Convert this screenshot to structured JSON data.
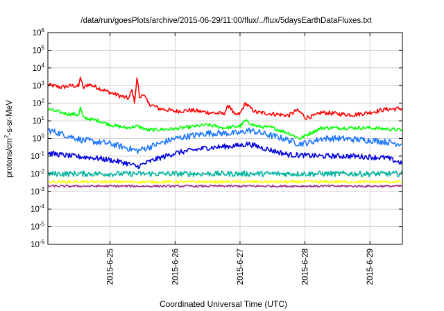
{
  "chart_data": {
    "type": "line",
    "title": "/data/run/goesPlots/archive/2015-06-29/11:00/flux/../flux/5daysEarthDataFluxes.txt",
    "xlabel": "Coordinated Universal Time (UTC)",
    "ylabel": {
      "pre": "protons/cm",
      "sup": "2",
      "post": "-s-sr-MeV"
    },
    "ylog": true,
    "ylim": [
      1e-06,
      1000000.0
    ],
    "xlim": [
      "2015-06-24T01:00",
      "2015-06-29T12:00"
    ],
    "grid": true,
    "y_ticks": [
      {
        "value": 1000000.0,
        "base": "10",
        "exp": "6"
      },
      {
        "value": 100000.0,
        "base": "10",
        "exp": "5"
      },
      {
        "value": 10000.0,
        "base": "10",
        "exp": "4"
      },
      {
        "value": 1000.0,
        "base": "10",
        "exp": "3"
      },
      {
        "value": 100.0,
        "base": "10",
        "exp": "2"
      },
      {
        "value": 10.0,
        "base": "10",
        "exp": "1"
      },
      {
        "value": 1.0,
        "base": "10",
        "exp": "0"
      },
      {
        "value": 0.1,
        "base": "10",
        "exp": "-1"
      },
      {
        "value": 0.01,
        "base": "10",
        "exp": "-2"
      },
      {
        "value": 0.001,
        "base": "10",
        "exp": "-3"
      },
      {
        "value": 0.0001,
        "base": "10",
        "exp": "-4"
      },
      {
        "value": 1e-05,
        "base": "10",
        "exp": "-5"
      },
      {
        "value": 1e-06,
        "base": "10",
        "exp": "-6"
      }
    ],
    "x_ticks": [
      {
        "value": "2015-06-25T00:00",
        "label": "2015-6-25"
      },
      {
        "value": "2015-06-26T00:00",
        "label": "2015-6-26"
      },
      {
        "value": "2015-06-27T00:00",
        "label": "2015-6-27"
      },
      {
        "value": "2015-06-28T00:00",
        "label": "2015-6-28"
      },
      {
        "value": "2015-06-29T00:00",
        "label": "2015-6-29"
      }
    ],
    "series": [
      {
        "color": "#ff0000",
        "noise": 0.12,
        "points": [
          [
            "2015-06-24T01:00",
            1100
          ],
          [
            "2015-06-24T06:00",
            800
          ],
          [
            "2015-06-24T10:00",
            1000
          ],
          [
            "2015-06-24T14:00",
            700
          ],
          [
            "2015-06-24T12:30",
            900
          ],
          [
            "2015-06-24T13:00",
            3500
          ],
          [
            "2015-06-24T16:00",
            1200
          ],
          [
            "2015-06-24T20:00",
            700
          ],
          [
            "2015-06-25T00:00",
            400
          ],
          [
            "2015-06-25T04:00",
            250
          ],
          [
            "2015-06-25T07:00",
            180
          ],
          [
            "2015-06-25T08:00",
            600
          ],
          [
            "2015-06-25T09:00",
            120
          ],
          [
            "2015-06-25T10:00",
            3000
          ],
          [
            "2015-06-25T11:00",
            150
          ],
          [
            "2015-06-25T12:00",
            400
          ],
          [
            "2015-06-25T14:00",
            100
          ],
          [
            "2015-06-25T18:00",
            50
          ],
          [
            "2015-06-26T00:00",
            35
          ],
          [
            "2015-06-26T06:00",
            40
          ],
          [
            "2015-06-26T12:00",
            30
          ],
          [
            "2015-06-26T18:00",
            25
          ],
          [
            "2015-06-26T20:00",
            80
          ],
          [
            "2015-06-26T22:00",
            20
          ],
          [
            "2015-06-27T00:00",
            25
          ],
          [
            "2015-06-27T02:00",
            100
          ],
          [
            "2015-06-27T04:00",
            50
          ],
          [
            "2015-06-27T06:00",
            30
          ],
          [
            "2015-06-27T12:00",
            25
          ],
          [
            "2015-06-27T18:00",
            20
          ],
          [
            "2015-06-27T21:00",
            40
          ],
          [
            "2015-06-27T23:00",
            25
          ],
          [
            "2015-06-28T00:00",
            15
          ],
          [
            "2015-06-28T04:00",
            20
          ],
          [
            "2015-06-28T06:00",
            30
          ],
          [
            "2015-06-28T12:00",
            25
          ],
          [
            "2015-06-28T18:00",
            22
          ],
          [
            "2015-06-29T00:00",
            30
          ],
          [
            "2015-06-29T06:00",
            45
          ],
          [
            "2015-06-29T12:00",
            50
          ]
        ]
      },
      {
        "color": "#00ff00",
        "noise": 0.1,
        "points": [
          [
            "2015-06-24T01:00",
            45
          ],
          [
            "2015-06-24T08:00",
            25
          ],
          [
            "2015-06-24T12:30",
            22
          ],
          [
            "2015-06-24T13:00",
            60
          ],
          [
            "2015-06-24T14:00",
            15
          ],
          [
            "2015-06-24T20:00",
            10
          ],
          [
            "2015-06-25T00:00",
            6
          ],
          [
            "2015-06-25T06:00",
            4
          ],
          [
            "2015-06-25T10:00",
            5
          ],
          [
            "2015-06-25T14:00",
            3
          ],
          [
            "2015-06-26T00:00",
            3.5
          ],
          [
            "2015-06-26T12:00",
            6
          ],
          [
            "2015-06-26T18:00",
            4
          ],
          [
            "2015-06-27T00:00",
            5
          ],
          [
            "2015-06-27T02:00",
            10
          ],
          [
            "2015-06-27T06:00",
            5
          ],
          [
            "2015-06-27T12:00",
            4
          ],
          [
            "2015-06-27T18:00",
            2
          ],
          [
            "2015-06-27T22:00",
            1
          ],
          [
            "2015-06-28T02:00",
            2
          ],
          [
            "2015-06-28T06:00",
            4
          ],
          [
            "2015-06-28T12:00",
            4
          ],
          [
            "2015-06-29T00:00",
            4
          ],
          [
            "2015-06-29T12:00",
            3
          ]
        ]
      },
      {
        "color": "#1e78ff",
        "noise": 0.18,
        "points": [
          [
            "2015-06-24T01:00",
            3
          ],
          [
            "2015-06-24T08:00",
            1.5
          ],
          [
            "2015-06-24T14:00",
            0.8
          ],
          [
            "2015-06-25T00:00",
            0.5
          ],
          [
            "2015-06-25T06:00",
            0.3
          ],
          [
            "2015-06-25T10:00",
            0.2
          ],
          [
            "2015-06-25T18:00",
            0.5
          ],
          [
            "2015-06-26T00:00",
            1
          ],
          [
            "2015-06-26T12:00",
            2
          ],
          [
            "2015-06-27T00:00",
            2
          ],
          [
            "2015-06-27T03:00",
            3
          ],
          [
            "2015-06-27T08:00",
            2
          ],
          [
            "2015-06-27T16:00",
            1
          ],
          [
            "2015-06-27T22:00",
            0.5
          ],
          [
            "2015-06-28T02:00",
            0.6
          ],
          [
            "2015-06-28T06:00",
            1
          ],
          [
            "2015-06-28T12:00",
            1
          ],
          [
            "2015-06-29T00:00",
            0.8
          ],
          [
            "2015-06-29T12:00",
            0.5
          ]
        ]
      },
      {
        "color": "#0000dd",
        "noise": 0.15,
        "points": [
          [
            "2015-06-24T01:00",
            0.15
          ],
          [
            "2015-06-24T10:00",
            0.1
          ],
          [
            "2015-06-24T18:00",
            0.08
          ],
          [
            "2015-06-25T00:00",
            0.06
          ],
          [
            "2015-06-25T06:00",
            0.04
          ],
          [
            "2015-06-25T10:00",
            0.025
          ],
          [
            "2015-06-25T16:00",
            0.06
          ],
          [
            "2015-06-26T00:00",
            0.15
          ],
          [
            "2015-06-26T12:00",
            0.3
          ],
          [
            "2015-06-27T00:00",
            0.4
          ],
          [
            "2015-06-27T03:00",
            0.5
          ],
          [
            "2015-06-27T10:00",
            0.25
          ],
          [
            "2015-06-27T18:00",
            0.12
          ],
          [
            "2015-06-28T06:00",
            0.1
          ],
          [
            "2015-06-28T18:00",
            0.1
          ],
          [
            "2015-06-29T06:00",
            0.08
          ],
          [
            "2015-06-29T12:00",
            0.04
          ]
        ]
      },
      {
        "color": "#00b4a0",
        "noise": 0.16,
        "points": [
          [
            "2015-06-24T01:00",
            0.01
          ],
          [
            "2015-06-26T00:00",
            0.01
          ],
          [
            "2015-06-29T12:00",
            0.01
          ]
        ]
      },
      {
        "color": "#ffff00",
        "noise": 0.08,
        "points": [
          [
            "2015-06-24T01:00",
            0.0035
          ],
          [
            "2015-06-26T00:00",
            0.0035
          ],
          [
            "2015-06-29T12:00",
            0.0035
          ]
        ]
      },
      {
        "color": "#9b2a8a",
        "noise": 0.06,
        "points": [
          [
            "2015-06-24T01:00",
            0.002
          ],
          [
            "2015-06-26T00:00",
            0.002
          ],
          [
            "2015-06-29T12:00",
            0.002
          ]
        ]
      }
    ]
  }
}
